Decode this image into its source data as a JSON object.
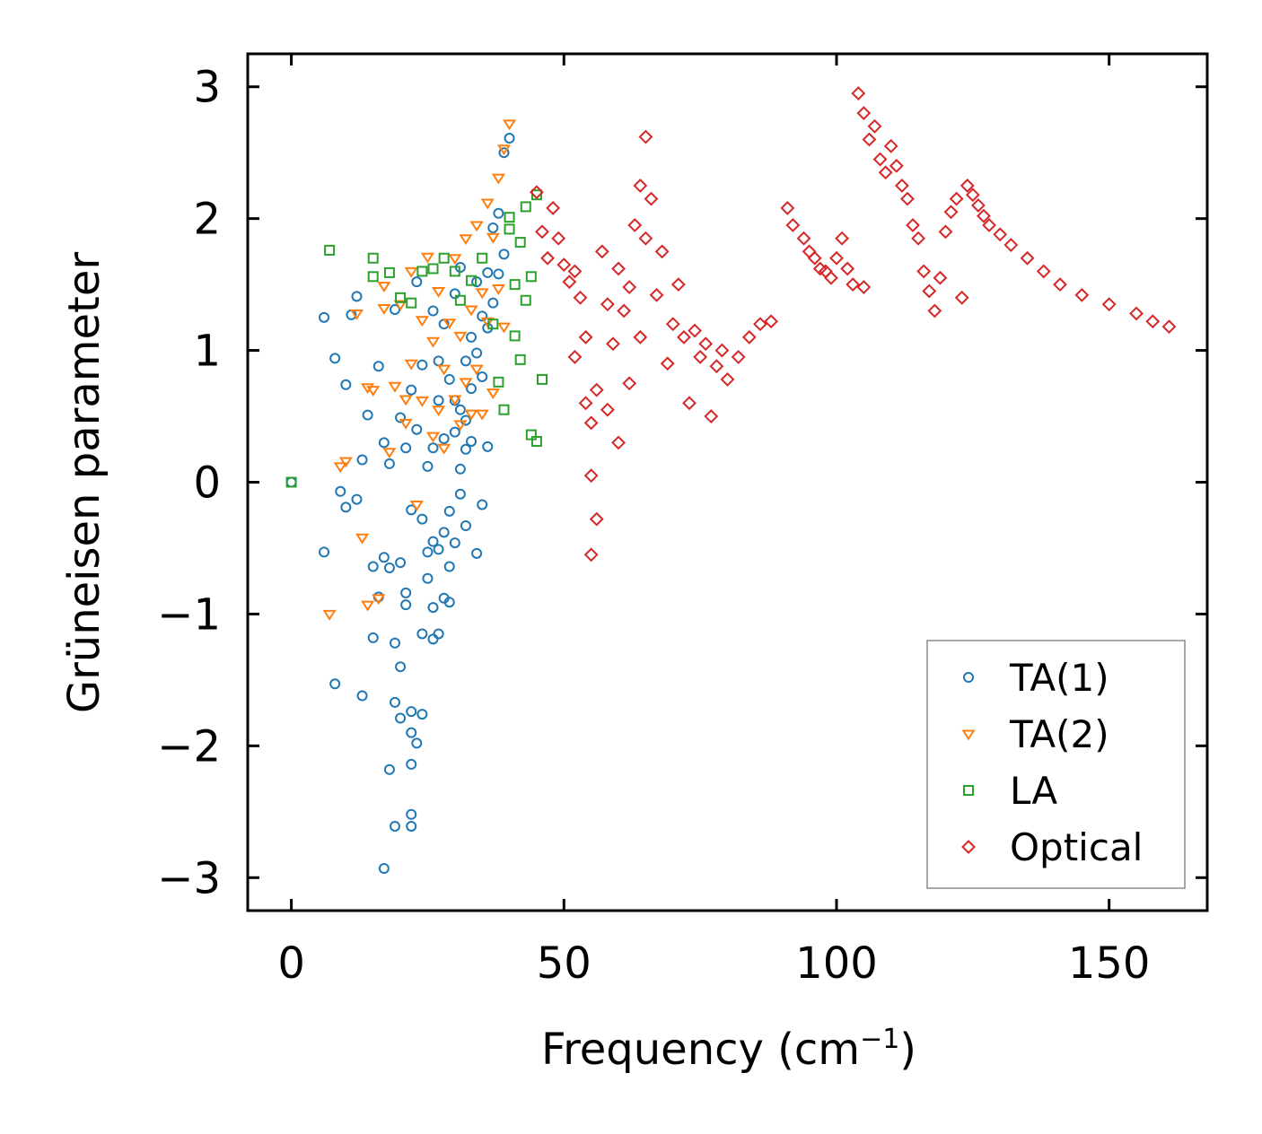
{
  "chart_data": {
    "type": "scatter",
    "title": "",
    "xlabel": "Frequency (cm",
    "xlabel_superscript": "−1",
    "xlabel_close": ")",
    "ylabel": "Grüneisen parameter",
    "xlim": [
      -8,
      168
    ],
    "ylim": [
      -3.25,
      3.25
    ],
    "xticks": [
      0,
      50,
      100,
      150
    ],
    "xtick_labels": [
      "0",
      "50",
      "100",
      "150"
    ],
    "yticks": [
      3,
      2,
      1,
      0,
      -1,
      -2,
      -3
    ],
    "ytick_labels": [
      "3",
      "2",
      "1",
      "0",
      "−1",
      "−2",
      "−3"
    ],
    "grid": false,
    "legend_position": "lower-right",
    "series": [
      {
        "name": "TA(1)",
        "marker": "circle",
        "color": "#1f77b4",
        "x": [
          0,
          6,
          6,
          8,
          8,
          9,
          10,
          10,
          11,
          12,
          12,
          13,
          13,
          14,
          15,
          15,
          16,
          16,
          17,
          17,
          17,
          18,
          18,
          18,
          19,
          19,
          19,
          19,
          20,
          20,
          20,
          20,
          21,
          21,
          21,
          22,
          22,
          22,
          22,
          22,
          22,
          22,
          23,
          23,
          23,
          24,
          24,
          24,
          24,
          25,
          25,
          25,
          26,
          26,
          26,
          26,
          26,
          27,
          27,
          27,
          27,
          28,
          28,
          28,
          28,
          29,
          29,
          29,
          29,
          30,
          30,
          30,
          30,
          31,
          31,
          31,
          31,
          32,
          32,
          32,
          32,
          33,
          33,
          33,
          34,
          34,
          34,
          35,
          35,
          35,
          36,
          36,
          36,
          37,
          37,
          38,
          38,
          39,
          39,
          40
        ],
        "y": [
          0.0,
          1.25,
          -0.53,
          0.94,
          -1.53,
          -0.07,
          -0.19,
          0.74,
          1.27,
          -0.13,
          1.41,
          -1.62,
          0.17,
          0.51,
          -0.64,
          -1.18,
          0.88,
          -0.87,
          -0.57,
          0.3,
          -2.93,
          -2.18,
          -0.65,
          0.14,
          1.31,
          -1.67,
          -1.22,
          -2.61,
          0.49,
          -0.61,
          -1.4,
          -1.79,
          0.26,
          -0.93,
          -0.84,
          0.7,
          -2.61,
          -2.52,
          -2.14,
          -0.21,
          -1.9,
          -1.74,
          1.52,
          -1.98,
          0.4,
          0.89,
          -0.28,
          -1.15,
          -1.76,
          -0.73,
          0.12,
          -0.53,
          -0.95,
          -1.19,
          0.26,
          1.3,
          -0.45,
          0.92,
          -1.15,
          -0.51,
          0.62,
          -0.88,
          0.33,
          -0.38,
          1.2,
          -0.64,
          -0.22,
          0.78,
          -0.91,
          -0.46,
          0.38,
          1.43,
          0.62,
          -0.09,
          0.1,
          0.55,
          1.63,
          0.47,
          -0.33,
          0.92,
          0.25,
          1.1,
          0.71,
          0.31,
          0.98,
          1.52,
          -0.54,
          0.8,
          1.26,
          -0.17,
          1.59,
          1.17,
          0.27,
          1.93,
          1.36,
          2.04,
          1.58,
          2.5,
          1.73,
          2.61
        ]
      },
      {
        "name": "TA(2)",
        "marker": "triangle-down",
        "color": "#ff7f0e",
        "x": [
          7,
          9,
          10,
          12,
          13,
          14,
          14,
          15,
          16,
          17,
          17,
          18,
          19,
          20,
          21,
          21,
          22,
          22,
          23,
          24,
          24,
          25,
          26,
          26,
          27,
          27,
          28,
          28,
          29,
          30,
          30,
          31,
          31,
          32,
          32,
          33,
          33,
          34,
          34,
          35,
          35,
          36,
          36,
          37,
          37,
          38,
          38,
          39,
          39,
          40
        ],
        "y": [
          -1.0,
          0.12,
          0.16,
          1.28,
          -0.42,
          -0.93,
          0.72,
          0.7,
          -0.88,
          1.32,
          1.49,
          0.23,
          0.73,
          1.35,
          0.63,
          0.45,
          1.6,
          0.9,
          -0.17,
          1.23,
          0.62,
          1.71,
          0.35,
          1.07,
          0.55,
          1.45,
          0.26,
          0.86,
          1.21,
          0.63,
          1.7,
          0.44,
          1.11,
          0.76,
          1.85,
          0.52,
          1.31,
          0.86,
          1.95,
          0.52,
          1.44,
          1.22,
          2.12,
          0.68,
          1.86,
          1.47,
          2.31,
          1.18,
          2.53,
          2.72
        ]
      },
      {
        "name": "LA",
        "marker": "square",
        "color": "#2ca02c",
        "x": [
          0,
          7,
          15,
          15,
          18,
          20,
          22,
          24,
          26,
          28,
          30,
          31,
          33,
          35,
          37,
          38,
          39,
          40,
          40,
          41,
          41,
          42,
          42,
          43,
          43,
          44,
          44,
          45,
          45,
          46
        ],
        "y": [
          0.0,
          1.76,
          1.7,
          1.56,
          1.59,
          1.4,
          1.36,
          1.6,
          1.62,
          1.7,
          1.6,
          1.38,
          1.53,
          1.7,
          1.2,
          0.76,
          0.55,
          1.92,
          2.01,
          1.11,
          1.5,
          1.82,
          0.93,
          1.38,
          2.09,
          0.36,
          1.56,
          0.31,
          2.18,
          0.78
        ]
      },
      {
        "name": "Optical",
        "marker": "diamond",
        "color": "#d62728",
        "x": [
          45,
          46,
          47,
          48,
          49,
          50,
          51,
          52,
          52,
          53,
          54,
          54,
          55,
          55,
          55,
          56,
          56,
          57,
          58,
          58,
          59,
          60,
          60,
          61,
          62,
          62,
          63,
          64,
          64,
          65,
          65,
          66,
          67,
          68,
          69,
          70,
          71,
          72,
          73,
          74,
          75,
          76,
          77,
          78,
          79,
          80,
          82,
          84,
          86,
          88,
          91,
          92,
          94,
          95,
          96,
          97,
          98,
          99,
          100,
          101,
          102,
          103,
          104,
          105,
          105,
          106,
          107,
          108,
          109,
          110,
          111,
          112,
          113,
          114,
          115,
          116,
          117,
          118,
          119,
          120,
          121,
          122,
          123,
          124,
          125,
          126,
          127,
          128,
          130,
          132,
          135,
          138,
          141,
          145,
          150,
          155,
          158,
          161
        ],
        "y": [
          2.2,
          1.9,
          1.7,
          2.08,
          1.85,
          1.65,
          1.52,
          1.6,
          0.95,
          1.4,
          0.6,
          1.1,
          -0.55,
          0.05,
          0.45,
          -0.28,
          0.7,
          1.75,
          1.35,
          0.55,
          1.05,
          1.62,
          0.3,
          1.3,
          0.75,
          1.48,
          1.95,
          1.1,
          2.25,
          2.62,
          1.85,
          2.15,
          1.42,
          1.75,
          0.9,
          1.2,
          1.5,
          1.1,
          0.6,
          1.15,
          0.95,
          1.05,
          0.5,
          0.88,
          1.0,
          0.78,
          0.95,
          1.1,
          1.2,
          1.22,
          2.08,
          1.95,
          1.85,
          1.75,
          1.7,
          1.62,
          1.6,
          1.55,
          1.7,
          1.85,
          1.62,
          1.5,
          2.95,
          2.8,
          1.48,
          2.6,
          2.7,
          2.45,
          2.35,
          2.55,
          2.4,
          2.25,
          2.15,
          1.95,
          1.85,
          1.6,
          1.45,
          1.3,
          1.55,
          1.9,
          2.05,
          2.15,
          1.4,
          2.25,
          2.18,
          2.1,
          2.02,
          1.95,
          1.88,
          1.8,
          1.7,
          1.6,
          1.5,
          1.42,
          1.35,
          1.28,
          1.22,
          1.18
        ]
      }
    ]
  }
}
